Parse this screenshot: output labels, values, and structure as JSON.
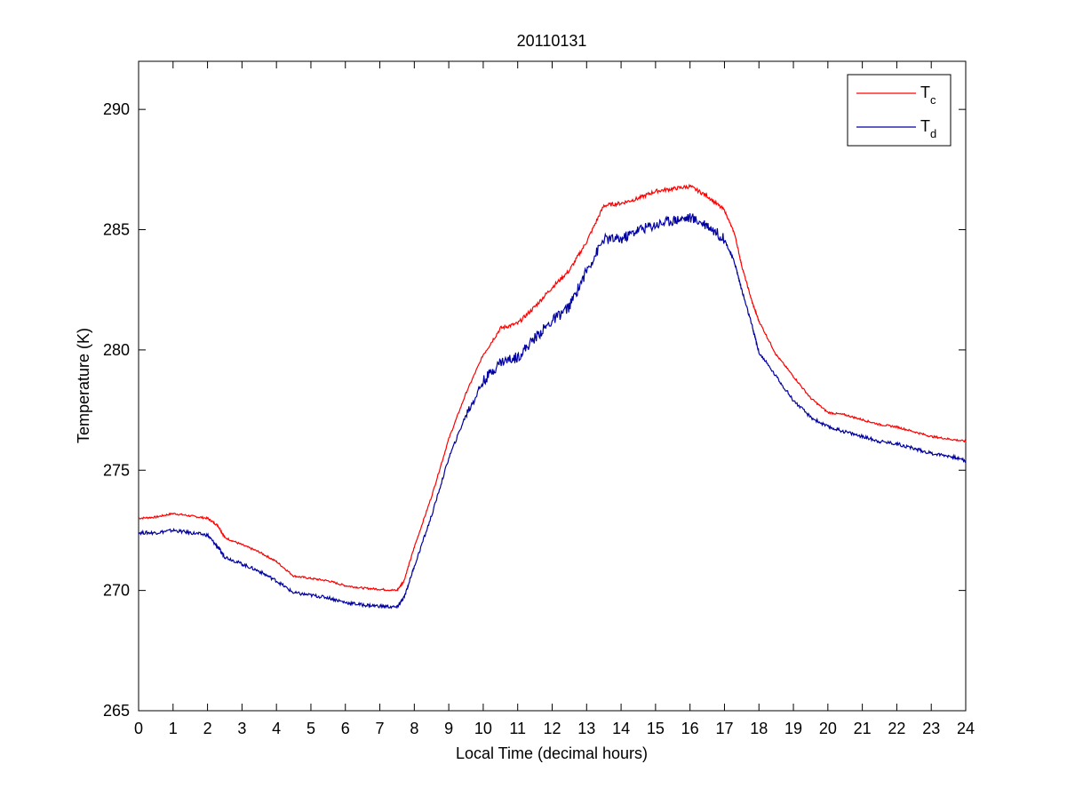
{
  "chart_data": {
    "type": "line",
    "title": "20110131",
    "xlabel": "Local Time (decimal hours)",
    "ylabel": "Temperature (K)",
    "xlim": [
      0,
      24
    ],
    "ylim": [
      265,
      292
    ],
    "xticks": [
      "0",
      "1",
      "2",
      "3",
      "4",
      "5",
      "6",
      "7",
      "8",
      "9",
      "10",
      "11",
      "12",
      "13",
      "14",
      "15",
      "16",
      "17",
      "18",
      "19",
      "20",
      "21",
      "22",
      "23",
      "24"
    ],
    "yticks": [
      "265",
      "270",
      "275",
      "280",
      "285",
      "290"
    ],
    "grid": false,
    "legend_position": "top-right",
    "series": [
      {
        "name": "T",
        "subscript": "c",
        "color": "#ff0000",
        "x": [
          0,
          0.5,
          1,
          1.5,
          2,
          2.3,
          2.5,
          3,
          3.5,
          4,
          4.5,
          5,
          5.5,
          6,
          6.5,
          7,
          7.5,
          7.7,
          8,
          8.5,
          9,
          9.5,
          10,
          10.5,
          11,
          11.5,
          12,
          12.5,
          13,
          13.5,
          14,
          14.5,
          15,
          15.5,
          16,
          16.5,
          17,
          17.3,
          17.5,
          17.8,
          18,
          18.5,
          19,
          19.5,
          20,
          20.5,
          21,
          21.5,
          22,
          22.5,
          23,
          23.5,
          24
        ],
        "y": [
          273.0,
          273.05,
          273.2,
          273.1,
          273.0,
          272.7,
          272.2,
          271.9,
          271.6,
          271.2,
          270.6,
          270.5,
          270.4,
          270.2,
          270.1,
          270.05,
          270.0,
          270.4,
          271.8,
          273.9,
          276.3,
          278.2,
          279.8,
          280.9,
          281.1,
          281.8,
          282.6,
          283.3,
          284.5,
          286.0,
          286.1,
          286.3,
          286.6,
          286.7,
          286.8,
          286.4,
          285.8,
          284.8,
          283.5,
          282.0,
          281.2,
          279.8,
          278.9,
          278.0,
          277.4,
          277.3,
          277.1,
          276.9,
          276.8,
          276.6,
          276.4,
          276.3,
          276.2
        ]
      },
      {
        "name": "T",
        "subscript": "d",
        "color": "#0000a0",
        "x": [
          0,
          0.5,
          1,
          1.5,
          2,
          2.3,
          2.5,
          3,
          3.5,
          4,
          4.5,
          5,
          5.5,
          6,
          6.5,
          7,
          7.5,
          7.7,
          8,
          8.5,
          9,
          9.5,
          10,
          10.5,
          11,
          11.5,
          12,
          12.5,
          13,
          13.5,
          14,
          14.5,
          15,
          15.5,
          16,
          16.5,
          17,
          17.3,
          17.5,
          17.8,
          18,
          18.5,
          19,
          19.5,
          20,
          20.5,
          21,
          21.5,
          22,
          22.5,
          23,
          23.5,
          24
        ],
        "y": [
          272.4,
          272.4,
          272.5,
          272.4,
          272.3,
          271.8,
          271.4,
          271.1,
          270.8,
          270.4,
          269.9,
          269.8,
          269.7,
          269.5,
          269.4,
          269.35,
          269.3,
          269.7,
          271.0,
          273.1,
          275.5,
          277.3,
          278.7,
          279.5,
          279.7,
          280.5,
          281.2,
          281.8,
          283.3,
          284.6,
          284.6,
          285.0,
          285.2,
          285.4,
          285.5,
          285.2,
          284.6,
          283.6,
          282.5,
          281.0,
          279.9,
          278.9,
          277.9,
          277.2,
          276.8,
          276.6,
          276.4,
          276.2,
          276.1,
          275.9,
          275.7,
          275.6,
          275.4
        ]
      }
    ]
  }
}
